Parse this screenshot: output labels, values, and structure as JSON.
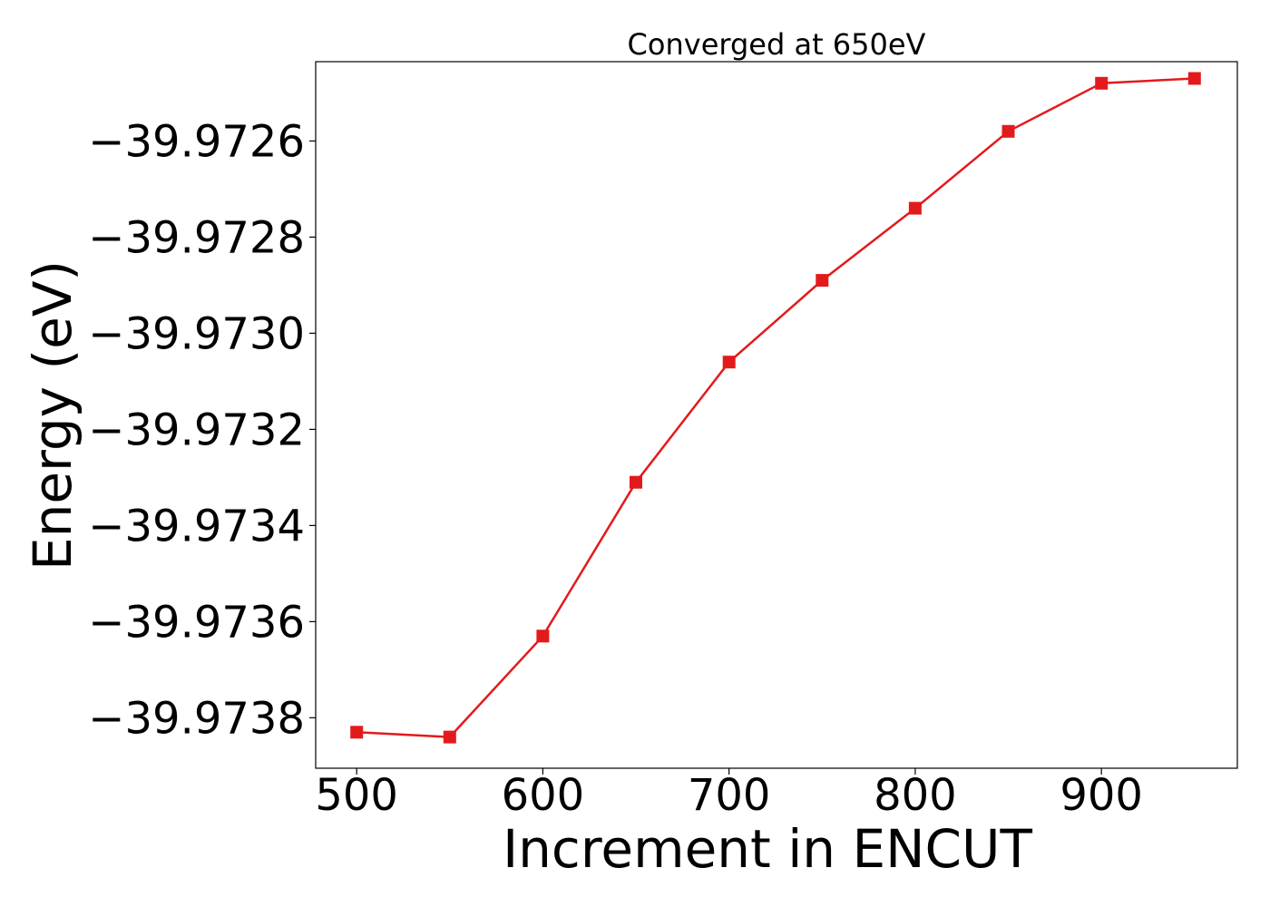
{
  "chart_data": {
    "type": "line",
    "title": "Converged at 650eV",
    "xlabel": "Increment in ENCUT",
    "ylabel": "Energy (eV)",
    "x": [
      500,
      550,
      600,
      650,
      700,
      750,
      800,
      850,
      900,
      950
    ],
    "series": [
      {
        "values": [
          -39.97383,
          -39.97384,
          -39.97363,
          -39.97331,
          -39.97306,
          -39.97289,
          -39.97274,
          -39.97258,
          -39.97248,
          -39.97247
        ],
        "color": "#e31a1c",
        "marker": "square"
      }
    ],
    "xlim": [
      478,
      973
    ],
    "ylim": [
      -39.973905,
      -39.972435
    ],
    "x_ticks": [
      500,
      600,
      700,
      800,
      900
    ],
    "x_tick_labels": [
      "500",
      "600",
      "700",
      "800",
      "900"
    ],
    "y_ticks": [
      -39.9726,
      -39.9728,
      -39.973,
      -39.9732,
      -39.9734,
      -39.9736,
      -39.9738
    ],
    "y_tick_labels": [
      "−39.9726",
      "−39.9728",
      "−39.9730",
      "−39.9732",
      "−39.9734",
      "−39.9736",
      "−39.9738"
    ],
    "grid": false,
    "legend": "none"
  }
}
